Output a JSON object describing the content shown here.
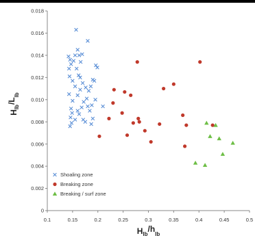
{
  "chart_data": {
    "type": "scatter",
    "xlabel": {
      "main": "H",
      "sub1": "lb",
      "sep": "/h",
      "sub2": "lb"
    },
    "ylabel": {
      "main": "H",
      "sub1": "lb",
      "sep": "/L",
      "sub2": "lb"
    },
    "xlim": [
      0.1,
      0.5
    ],
    "ylim": [
      0,
      0.018
    ],
    "xticks": [
      "0.1",
      "0.15",
      "0.2",
      "0.25",
      "0.3",
      "0.35",
      "0.4",
      "0.45",
      "0.5"
    ],
    "yticks": [
      "0",
      "0.002",
      "0.004",
      "0.006",
      "0.008",
      "0.010",
      "0.012",
      "0.014",
      "0.016",
      "0.018"
    ],
    "grid": false,
    "legend_position": "bottom-left",
    "series": [
      {
        "name": "Shoaling zone",
        "marker": "x",
        "color": "#5B8FD6",
        "points": [
          [
            0.142,
            0.0139
          ],
          [
            0.145,
            0.0136
          ],
          [
            0.147,
            0.0132
          ],
          [
            0.143,
            0.0128
          ],
          [
            0.152,
            0.0135
          ],
          [
            0.155,
            0.014
          ],
          [
            0.157,
            0.0163
          ],
          [
            0.16,
            0.0145
          ],
          [
            0.163,
            0.014
          ],
          [
            0.166,
            0.0134
          ],
          [
            0.169,
            0.0141
          ],
          [
            0.18,
            0.0153
          ],
          [
            0.158,
            0.0128
          ],
          [
            0.162,
            0.0122
          ],
          [
            0.165,
            0.012
          ],
          [
            0.17,
            0.0115
          ],
          [
            0.176,
            0.0111
          ],
          [
            0.182,
            0.0108
          ],
          [
            0.19,
            0.0118
          ],
          [
            0.196,
            0.0131
          ],
          [
            0.199,
            0.0129
          ],
          [
            0.193,
            0.0117
          ],
          [
            0.144,
            0.0121
          ],
          [
            0.15,
            0.0117
          ],
          [
            0.155,
            0.0112
          ],
          [
            0.16,
            0.0104
          ],
          [
            0.165,
            0.0109
          ],
          [
            0.172,
            0.0098
          ],
          [
            0.178,
            0.0101
          ],
          [
            0.143,
            0.0105
          ],
          [
            0.15,
            0.0099
          ],
          [
            0.147,
            0.0092
          ],
          [
            0.149,
            0.0088
          ],
          [
            0.146,
            0.0084
          ],
          [
            0.148,
            0.0079
          ],
          [
            0.145,
            0.0076
          ],
          [
            0.155,
            0.0082
          ],
          [
            0.16,
            0.009
          ],
          [
            0.163,
            0.0087
          ],
          [
            0.168,
            0.0093
          ],
          [
            0.171,
            0.0082
          ],
          [
            0.175,
            0.008
          ],
          [
            0.18,
            0.0094
          ],
          [
            0.184,
            0.009
          ],
          [
            0.188,
            0.0095
          ],
          [
            0.19,
            0.0083
          ],
          [
            0.187,
            0.0078
          ],
          [
            0.21,
            0.0094
          ],
          [
            0.195,
            0.01
          ],
          [
            0.186,
            0.0112
          ]
        ]
      },
      {
        "name": "Breaking zone",
        "marker": "circle",
        "color": "#C0392B",
        "points": [
          [
            0.203,
            0.0067
          ],
          [
            0.222,
            0.0083
          ],
          [
            0.23,
            0.0097
          ],
          [
            0.232,
            0.0109
          ],
          [
            0.248,
            0.0088
          ],
          [
            0.253,
            0.0107
          ],
          [
            0.258,
            0.0068
          ],
          [
            0.265,
            0.0104
          ],
          [
            0.27,
            0.0079
          ],
          [
            0.278,
            0.0134
          ],
          [
            0.28,
            0.0083
          ],
          [
            0.282,
            0.008
          ],
          [
            0.293,
            0.0072
          ],
          [
            0.305,
            0.0062
          ],
          [
            0.322,
            0.0078
          ],
          [
            0.33,
            0.011
          ],
          [
            0.35,
            0.0114
          ],
          [
            0.368,
            0.0086
          ],
          [
            0.372,
            0.0058
          ],
          [
            0.375,
            0.0077
          ],
          [
            0.402,
            0.0134
          ],
          [
            0.427,
            0.0077
          ]
        ]
      },
      {
        "name": "Breaking / surf zone",
        "marker": "triangle",
        "color": "#6DBE45",
        "points": [
          [
            0.393,
            0.0043
          ],
          [
            0.412,
            0.0041
          ],
          [
            0.415,
            0.0079
          ],
          [
            0.422,
            0.0067
          ],
          [
            0.433,
            0.0077
          ],
          [
            0.44,
            0.0065
          ],
          [
            0.447,
            0.0051
          ],
          [
            0.467,
            0.0061
          ]
        ]
      }
    ]
  }
}
